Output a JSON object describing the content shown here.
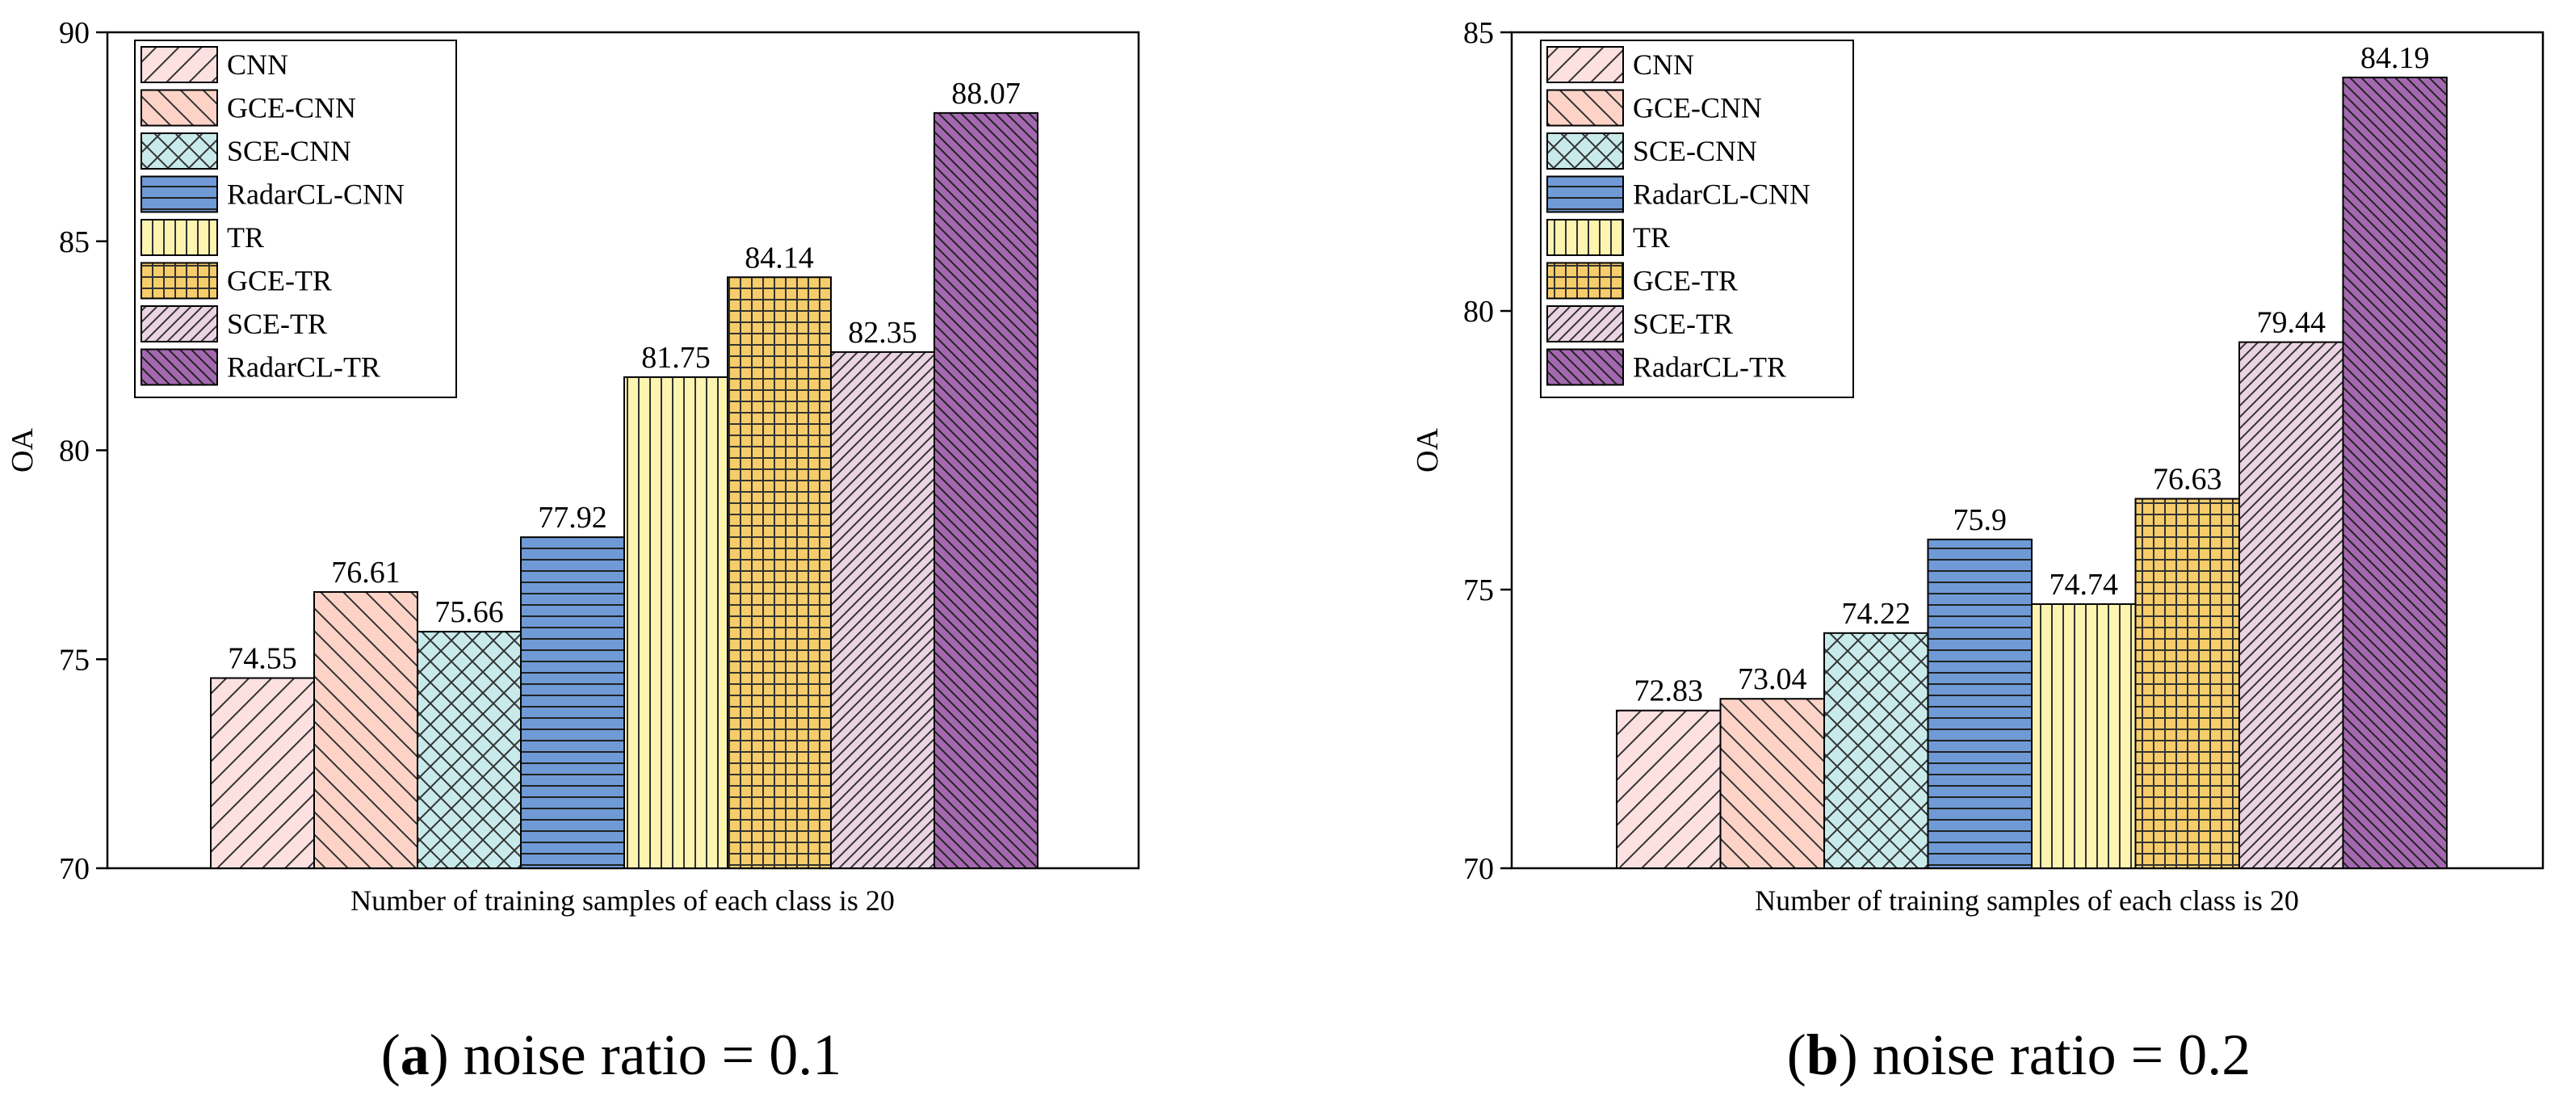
{
  "legend_items": [
    "CNN",
    "GCE-CNN",
    "SCE-CNN",
    "RadarCL-CNN",
    "TR",
    "GCE-TR",
    "SCE-TR",
    "RadarCL-TR"
  ],
  "series_styles": [
    {
      "fill": "#fde0e0",
      "pattern": "diag-fwd"
    },
    {
      "fill": "#fdd3c8",
      "pattern": "diag-back"
    },
    {
      "fill": "#c8eaea",
      "pattern": "cross-hatch"
    },
    {
      "fill": "#6f9ad6",
      "pattern": "horizontal"
    },
    {
      "fill": "#fdf4b0",
      "pattern": "vertical"
    },
    {
      "fill": "#f6cd6a",
      "pattern": "grid"
    },
    {
      "fill": "#ead4e4",
      "pattern": "diag-fwd-dense"
    },
    {
      "fill": "#a468b0",
      "pattern": "diag-back-dense"
    }
  ],
  "chart_data": [
    {
      "type": "bar",
      "panel_label": "a",
      "caption": "noise ratio = 0.1",
      "xlabel": "Number of training samples of each class is 20",
      "ylabel": "OA",
      "ylim": [
        70,
        90
      ],
      "yticks": [
        70,
        75,
        80,
        85,
        90
      ],
      "legend_position": "top-left",
      "values": [
        74.55,
        76.61,
        75.66,
        77.92,
        81.75,
        84.14,
        82.35,
        88.07
      ],
      "labels": [
        "74.55",
        "76.61",
        "75.66",
        "77.92",
        "81.75",
        "84.14",
        "82.35",
        "88.07"
      ]
    },
    {
      "type": "bar",
      "panel_label": "b",
      "caption": "noise ratio = 0.2",
      "xlabel": "Number of training samples of each class is 20",
      "ylabel": "OA",
      "ylim": [
        70,
        85
      ],
      "yticks": [
        70,
        75,
        80,
        85
      ],
      "legend_position": "top-left",
      "values": [
        72.83,
        73.04,
        74.22,
        75.9,
        74.74,
        76.63,
        79.44,
        84.19
      ],
      "labels": [
        "72.83",
        "73.04",
        "74.22",
        "75.9",
        "74.74",
        "76.63",
        "79.44",
        "84.19"
      ]
    }
  ]
}
